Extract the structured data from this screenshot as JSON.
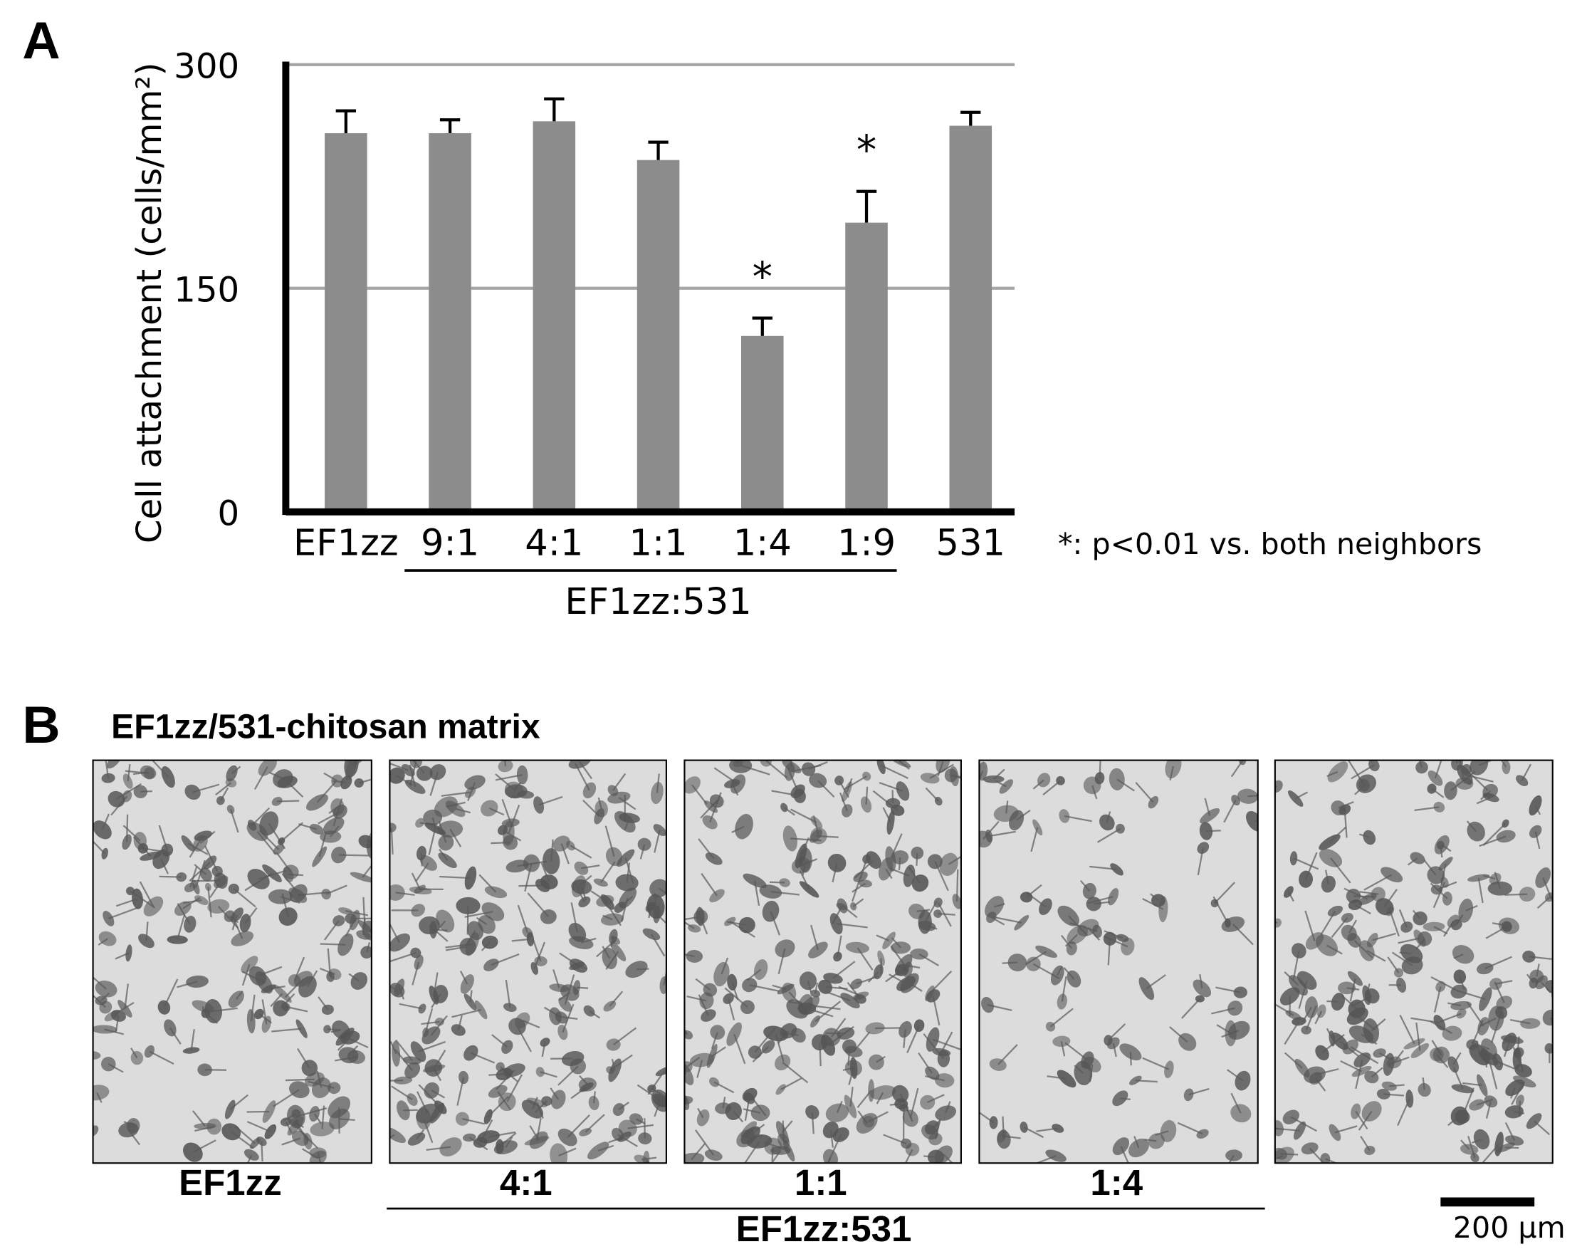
{
  "chart_data": {
    "type": "bar",
    "panel_label": "A",
    "y_label": "Cell attachment (cells/mm²)",
    "categories": [
      "EF1zz",
      "9:1",
      "4:1",
      "1:1",
      "1:4",
      "1:9",
      "531"
    ],
    "values": [
      254,
      254,
      262,
      236,
      118,
      194,
      259
    ],
    "errors": [
      15,
      9,
      15,
      12,
      12,
      21,
      9
    ],
    "color": "#8c8c8c",
    "ylim": [
      0,
      300
    ],
    "yticks": [
      0,
      150,
      300
    ],
    "grid": true,
    "annotations": [
      {
        "category": "1:4",
        "text": "*"
      },
      {
        "category": "1:9",
        "text": "*"
      }
    ],
    "group": {
      "label": "EF1zz:531",
      "from": "9:1",
      "to": "1:9"
    },
    "footnote": "*: p<0.01 vs. both neighbors"
  },
  "micrographs": {
    "panel_label": "B",
    "title": "EF1zz/531-chitosan matrix",
    "labels": [
      "EF1zz",
      "4:1",
      "1:1",
      "1:4"
    ],
    "group": {
      "label": "EF1zz:531",
      "from": "4:1",
      "to": "1:4"
    },
    "scale_bar": "200 µm"
  }
}
